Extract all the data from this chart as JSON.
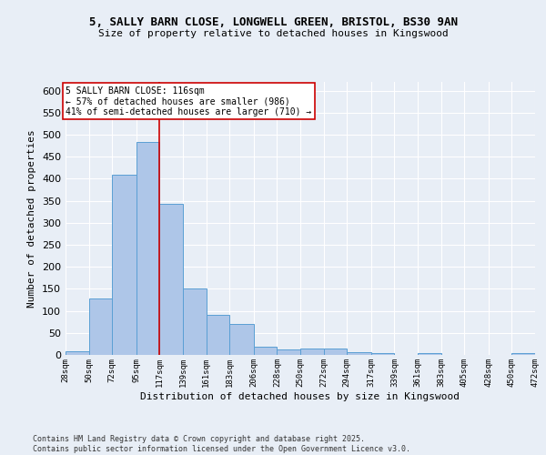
{
  "title_line1": "5, SALLY BARN CLOSE, LONGWELL GREEN, BRISTOL, BS30 9AN",
  "title_line2": "Size of property relative to detached houses in Kingswood",
  "xlabel": "Distribution of detached houses by size in Kingswood",
  "ylabel": "Number of detached properties",
  "bar_edges": [
    28,
    50,
    72,
    95,
    117,
    139,
    161,
    183,
    206,
    228,
    250,
    272,
    294,
    317,
    339,
    361,
    383,
    405,
    428,
    450,
    472
  ],
  "bar_heights": [
    8,
    128,
    410,
    483,
    344,
    150,
    90,
    70,
    18,
    13,
    15,
    15,
    6,
    4,
    0,
    4,
    0,
    0,
    0,
    4
  ],
  "bar_color": "#aec6e8",
  "bar_edge_color": "#5a9fd4",
  "vline_x": 117,
  "vline_color": "#cc0000",
  "ylim": [
    0,
    620
  ],
  "yticks": [
    0,
    50,
    100,
    150,
    200,
    250,
    300,
    350,
    400,
    450,
    500,
    550,
    600
  ],
  "annotation_text": "5 SALLY BARN CLOSE: 116sqm\n← 57% of detached houses are smaller (986)\n41% of semi-detached houses are larger (710) →",
  "annotation_box_color": "#ffffff",
  "annotation_border_color": "#cc0000",
  "bg_color": "#e8eef6",
  "grid_color": "#ffffff",
  "footer_text": "Contains HM Land Registry data © Crown copyright and database right 2025.\nContains public sector information licensed under the Open Government Licence v3.0.",
  "tick_labels": [
    "28sqm",
    "50sqm",
    "72sqm",
    "95sqm",
    "117sqm",
    "139sqm",
    "161sqm",
    "183sqm",
    "206sqm",
    "228sqm",
    "250sqm",
    "272sqm",
    "294sqm",
    "317sqm",
    "339sqm",
    "361sqm",
    "383sqm",
    "405sqm",
    "428sqm",
    "450sqm",
    "472sqm"
  ]
}
